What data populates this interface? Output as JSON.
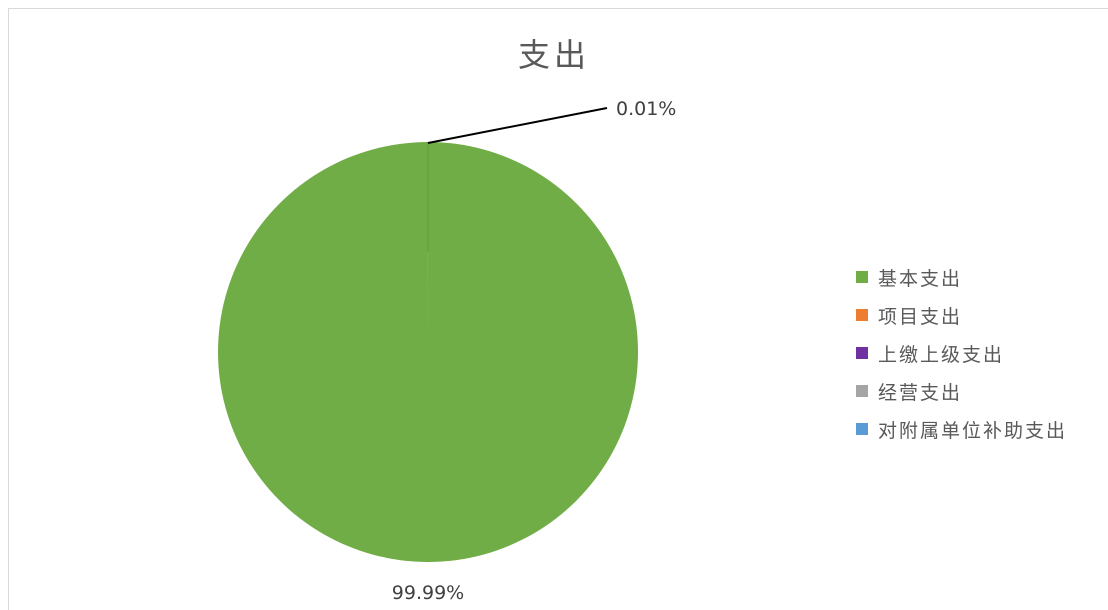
{
  "chart_data": {
    "type": "pie",
    "title": "支出",
    "slices": [
      {
        "name": "基本支出",
        "value": 99.99,
        "label": "99.99%",
        "color": "#70AD47"
      },
      {
        "name": "项目支出",
        "value": 0.01,
        "label": "0.01%",
        "color": "#ED7D31"
      },
      {
        "name": "上缴上级支出",
        "value": 0,
        "label": "",
        "color": "#7030A0"
      },
      {
        "name": "经营支出",
        "value": 0,
        "label": "",
        "color": "#A5A5A5"
      },
      {
        "name": "对附属单位补助支出",
        "value": 0,
        "label": "",
        "color": "#5B9BD5"
      }
    ],
    "legend": {
      "position": "right",
      "entries": [
        "基本支出",
        "项目支出",
        "上缴上级支出",
        "经营支出",
        "对附属单位补助支出"
      ]
    }
  }
}
